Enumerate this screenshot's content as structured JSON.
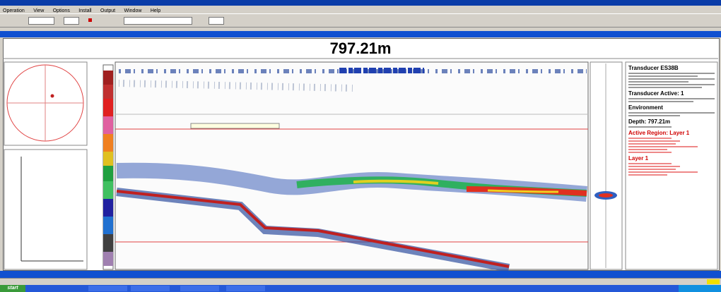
{
  "window": {
    "menu": [
      "Operation",
      "View",
      "Options",
      "Install",
      "Output",
      "Window",
      "Help"
    ]
  },
  "echogram": {
    "depth": "797.21m"
  },
  "info": {
    "sections": [
      {
        "heading": "Transducer ES38B"
      },
      {
        "heading": "Transducer Active: 1"
      },
      {
        "heading": "Environment"
      },
      {
        "heading": "Depth: 797.21m"
      },
      {
        "heading": "Active Region: Layer 1"
      },
      {
        "heading": "Layer 1"
      }
    ]
  },
  "taskbar": {
    "start": "start"
  }
}
